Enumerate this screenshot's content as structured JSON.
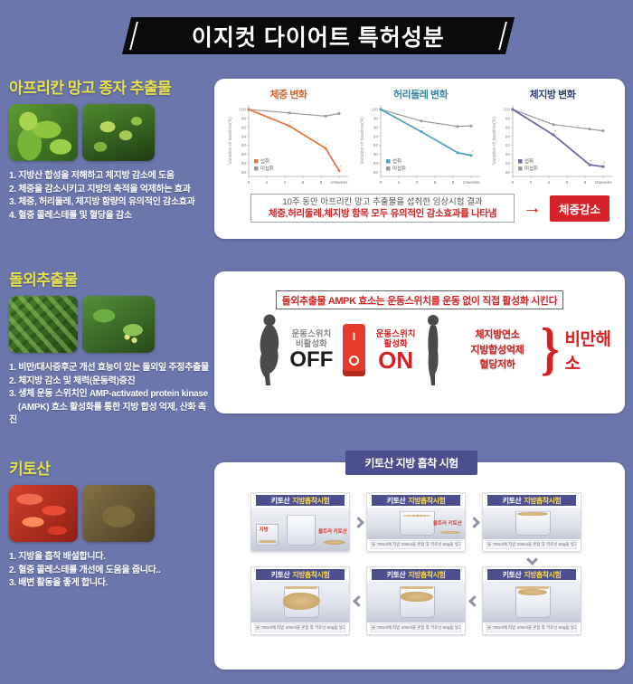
{
  "title_banner": "이지컷 다이어트 특허성분",
  "icons": {
    "arrow_right": "→",
    "brace": "}"
  },
  "colors": {
    "background": "#6b76ad",
    "accent_red": "#d42222",
    "badge_red": "#d8222a",
    "panel_purple": "#4b4f8e",
    "title_yellow": "#e9e24b",
    "header_yellow": "#ffd94a"
  },
  "sections": {
    "mango": {
      "title": "아프리칸 망고 종자 추출물",
      "bullets": [
        "1. 지방산 합성을 저해하고 체지방 감소에 도움",
        "2. 체중을 감소시키고 지방의 축적을 억제하는 효과",
        "3. 체중, 허리둘레, 체지방 함량의 유의적인 감소효과",
        "4. 혈중 콜레스테롤 및 혈당을 감소"
      ],
      "result_line1": "10주 동안 아프리칸 망고 추출물을 섭취한 임상시험 결과",
      "result_line2": "체중,허리둘레,체지방 항목 모두 유의적인 감소효과를 나타냄",
      "result_badge": "체중감소"
    },
    "gynostemma": {
      "title": "돌외추출물",
      "bullets": [
        "1. 비만/대사증후군 개선 효능이 있는 돌외잎 주정추출물",
        "2. 체지방 감소 및 체력(운동력)증진",
        "3. 생체 운동 스위치인 AMP-activated protein kinase",
        "    (AMPK) 효소 활성화를 통한 지방 합성 억제, 산화 촉진"
      ],
      "headline": "돌외추출물 AMPK 효소는 운동스위치를 운동 없이 직접 활성화 시킨다",
      "off_label_top": "운동스위치",
      "off_label_bottom": "비활성화",
      "off_text": "OFF",
      "on_label_top": "운동스위치",
      "on_label_bottom": "활성화",
      "on_text": "ON",
      "switch_top": "I",
      "effects": [
        "체지방연소",
        "지방합성억제",
        "혈당저하"
      ],
      "effect_result": "비만해소"
    },
    "chitosan": {
      "title": "키토산",
      "bullets": [
        "1. 지방을 흡착 배설합니다.",
        "2. 혈중 콜레스테롤 개선에 도움을 줍니다..",
        "3. 배변 활동을 좋게 합니다."
      ],
      "panel_badge": "키토산 지방 흡착 시험",
      "card_header_white": "키토산",
      "card_header_yellow": "지방흡착시험",
      "cards": [
        {
          "stage": 1,
          "labels": [
            "지방",
            "울트라 키토산"
          ],
          "caption": null
        },
        {
          "stage": 2,
          "labels": [
            "울트라 키토산"
          ],
          "caption": "물 700ml에 지방 200ml을 혼합 후 키토산 50g을 넣고 지방흡착 관찰"
        },
        {
          "stage": 3,
          "labels": [],
          "caption": "물 700ml에 지방 200ml을 혼합 후 키토산 50g을 넣고 지방흡착 관찰"
        },
        {
          "stage": 6,
          "labels": [],
          "caption": "물 700ml에 지방 200ml을 혼합 후 키토산 50g을 넣고 지방흡착 관찰"
        },
        {
          "stage": 5,
          "labels": [],
          "caption": "물 700ml에 지방 200ml을 혼합 후 키토산 50g을 넣고 지방흡착 관찰"
        },
        {
          "stage": 4,
          "labels": [],
          "caption": "물 700ml에 지방 200ml을 혼합 후 키토산 50g을 넣고 지방흡착 관찰"
        }
      ]
    }
  },
  "chart_data": [
    {
      "type": "line",
      "title": "체중 변화",
      "title_color": "#d8632e",
      "ylabel": "Variation of baseline(%)",
      "yticks": [
        100,
        98,
        96,
        94,
        92,
        90,
        88,
        86
      ],
      "ylim": [
        85,
        101
      ],
      "xticks": [
        "0",
        "2",
        "4",
        "6",
        "8",
        "10weeks"
      ],
      "xtick_values": [
        0,
        2,
        4,
        6,
        8,
        10
      ],
      "xlim": [
        0,
        10.8
      ],
      "legend_position": "bottom-left",
      "grid": false,
      "series": [
        {
          "name": "섭취",
          "color": "#e0793f",
          "x": [
            0,
            4.5,
            8.5,
            10
          ],
          "y": [
            100,
            96.3,
            91.3,
            86.3
          ]
        },
        {
          "name": "미섭취",
          "color": "#9a9a9a",
          "x": [
            0,
            4.5,
            8.5,
            10
          ],
          "y": [
            100,
            99.2,
            98.5,
            99.1
          ]
        }
      ]
    },
    {
      "type": "line",
      "title": "허리둘레 변화",
      "title_color": "#3c87a8",
      "ylabel": "Variation of baseline(%)",
      "yticks": [
        100,
        98,
        96,
        94,
        92,
        90,
        88,
        86
      ],
      "ylim": [
        85,
        101
      ],
      "xticks": [
        "0",
        "2",
        "4",
        "6",
        "8",
        "10weeks"
      ],
      "xtick_values": [
        0,
        2,
        4,
        6,
        8,
        10
      ],
      "xlim": [
        0,
        10.8
      ],
      "legend_position": "bottom-left",
      "grid": false,
      "series": [
        {
          "name": "섭취",
          "color": "#56a3bd",
          "x": [
            0,
            4.5,
            8.5,
            10
          ],
          "y": [
            100,
            95.0,
            90.3,
            89.7
          ]
        },
        {
          "name": "미섭취",
          "color": "#9a9a9a",
          "x": [
            0,
            4.5,
            8.5,
            10
          ],
          "y": [
            100,
            97.4,
            96.2,
            96.3
          ]
        }
      ]
    },
    {
      "type": "line",
      "title": "체지방 변화",
      "title_color": "#2f3f6e",
      "ylabel": "Variation of baseline(%)",
      "yticks": [
        100,
        98,
        96,
        94,
        92,
        90,
        88,
        86
      ],
      "ylim": [
        85,
        101
      ],
      "xticks": [
        "0",
        "2",
        "4",
        "6",
        "8",
        "10weeks"
      ],
      "xtick_values": [
        0,
        2,
        4,
        6,
        8,
        10
      ],
      "xlim": [
        0,
        10.8
      ],
      "legend_position": "bottom-left",
      "grid": false,
      "series": [
        {
          "name": "섭취",
          "color": "#6f6ba5",
          "x": [
            0,
            4.5,
            8.5,
            10
          ],
          "y": [
            100,
            94.3,
            87.6,
            87.2
          ]
        },
        {
          "name": "미섭취",
          "color": "#9a9a9a",
          "x": [
            0,
            4.5,
            8.5,
            10
          ],
          "y": [
            100,
            96.6,
            95.6,
            95.2
          ]
        }
      ]
    }
  ]
}
